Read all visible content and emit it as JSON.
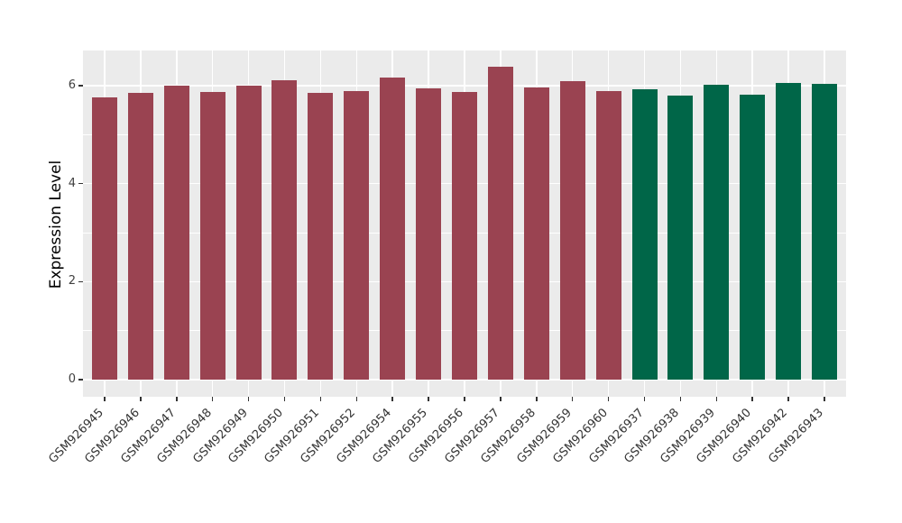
{
  "chart_data": {
    "type": "bar",
    "ylabel": "Expression Level",
    "yticks": [
      0,
      2,
      4,
      6
    ],
    "yticks_minor": [
      1,
      3,
      5
    ],
    "ylim": [
      0,
      6.72
    ],
    "grid": true,
    "legend": false,
    "panel_background": "#EBEBEB",
    "grid_color": "#FFFFFF",
    "tick_color": "#333333",
    "tick_label_color": "#404040",
    "categories": [
      "GSM926945",
      "GSM926946",
      "GSM926947",
      "GSM926948",
      "GSM926949",
      "GSM926950",
      "GSM926951",
      "GSM926952",
      "GSM926954",
      "GSM926955",
      "GSM926956",
      "GSM926957",
      "GSM926958",
      "GSM926959",
      "GSM926960",
      "GSM926937",
      "GSM926938",
      "GSM926939",
      "GSM926940",
      "GSM926942",
      "GSM926943"
    ],
    "values": [
      5.77,
      5.86,
      6.0,
      5.88,
      6.0,
      6.11,
      5.86,
      5.89,
      6.17,
      5.94,
      5.87,
      6.38,
      5.96,
      6.09,
      5.89,
      5.93,
      5.8,
      6.02,
      5.82,
      6.06,
      6.03
    ],
    "bar_colors": [
      "#9A4351",
      "#9A4351",
      "#9A4351",
      "#9A4351",
      "#9A4351",
      "#9A4351",
      "#9A4351",
      "#9A4351",
      "#9A4351",
      "#9A4351",
      "#9A4351",
      "#9A4351",
      "#9A4351",
      "#9A4351",
      "#9A4351",
      "#006648",
      "#006648",
      "#006648",
      "#006648",
      "#006648",
      "#006648"
    ]
  }
}
